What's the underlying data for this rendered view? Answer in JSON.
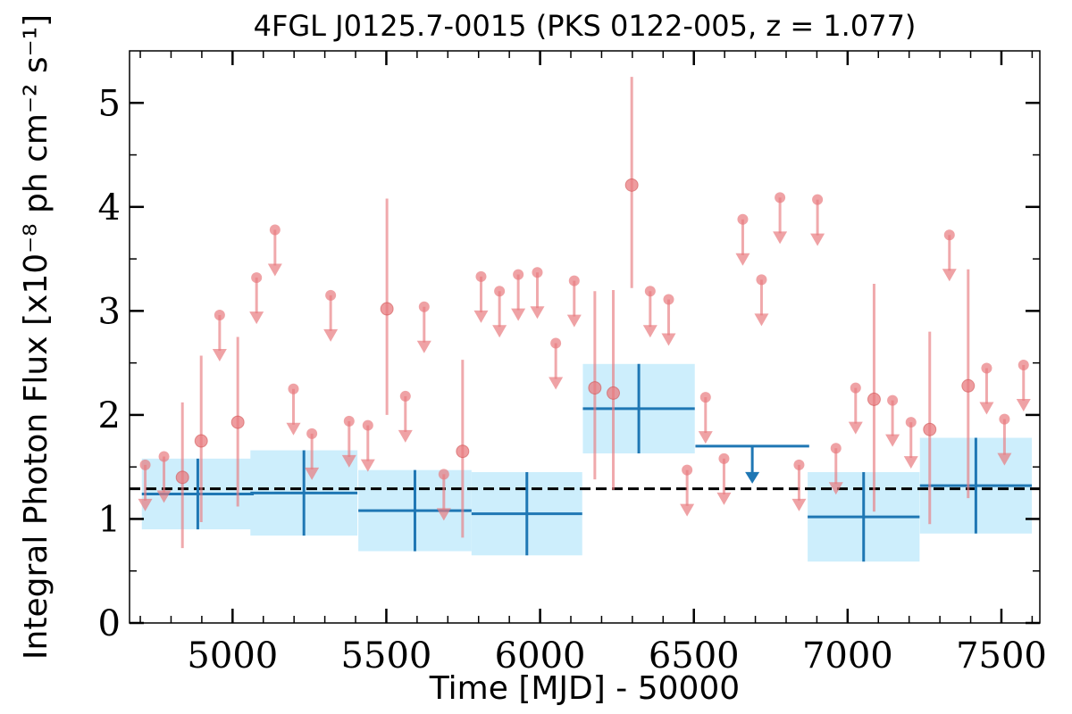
{
  "chart_data": {
    "type": "scatter",
    "title": "4FGL J0125.7-0015 (PKS 0122-005, z = 1.077)",
    "xlabel": "Time [MJD] - 50000",
    "ylabel": "Integral Photon Flux [x10⁻⁸ ph cm⁻² s⁻¹]",
    "xlim": [
      4665,
      7625
    ],
    "ylim": [
      0,
      5.5
    ],
    "x_ticks": [
      5000,
      5500,
      6000,
      6500,
      7000,
      7500
    ],
    "x_tick_labels": [
      "5000",
      "5500",
      "6000",
      "6500",
      "7000",
      "7500"
    ],
    "y_ticks": [
      0,
      1,
      2,
      3,
      4,
      5
    ],
    "y_tick_labels": [
      "0",
      "1",
      "2",
      "3",
      "4",
      "5"
    ],
    "grid": false,
    "mean_flux": 1.29,
    "colors": {
      "short_bins": "#e87b7f",
      "long_bins": "#1f77b4",
      "long_bins_band": "#cdeefc",
      "mean_line": "#000000"
    },
    "long_bins": [
      {
        "x": 4887,
        "xerr": 182,
        "y": 1.24,
        "yerr": 0.34
      },
      {
        "x": 5232,
        "xerr": 174,
        "y": 1.25,
        "yerr": 0.41
      },
      {
        "x": 5593,
        "xerr": 184,
        "y": 1.08,
        "yerr": 0.39
      },
      {
        "x": 5957,
        "xerr": 180,
        "y": 1.05,
        "yerr": 0.4
      },
      {
        "x": 6321,
        "xerr": 182,
        "y": 2.06,
        "yerr": 0.43
      },
      {
        "x": 7052,
        "xerr": 182,
        "y": 1.02,
        "yerr": 0.43
      },
      {
        "x": 7417,
        "xerr": 182,
        "y": 1.32,
        "yerr": 0.46
      }
    ],
    "long_bin_upper_limits": [
      {
        "x": 6690,
        "xerr": 185,
        "y": 1.7
      }
    ],
    "short_bins": [
      {
        "x": 4837,
        "y": 1.4,
        "y_low": 0.72,
        "y_high": 2.12
      },
      {
        "x": 4898,
        "y": 1.75,
        "y_low": 0.97,
        "y_high": 2.57
      },
      {
        "x": 5017,
        "y": 1.93,
        "y_low": 1.12,
        "y_high": 2.75
      },
      {
        "x": 5502,
        "y": 3.02,
        "y_low": 2.0,
        "y_high": 4.08
      },
      {
        "x": 5748,
        "y": 1.65,
        "y_low": 0.82,
        "y_high": 2.53
      },
      {
        "x": 6178,
        "y": 2.26,
        "y_low": 1.38,
        "y_high": 3.19
      },
      {
        "x": 6238,
        "y": 2.21,
        "y_low": 1.28,
        "y_high": 3.2
      },
      {
        "x": 6298,
        "y": 4.21,
        "y_low": 3.22,
        "y_high": 5.25
      },
      {
        "x": 7086,
        "y": 2.15,
        "y_low": 1.07,
        "y_high": 3.26
      },
      {
        "x": 7267,
        "y": 1.86,
        "y_low": 0.95,
        "y_high": 2.8
      },
      {
        "x": 7392,
        "y": 2.28,
        "y_low": 1.2,
        "y_high": 3.4
      }
    ],
    "short_bin_upper_limits": [
      {
        "x": 4716,
        "y": 1.52
      },
      {
        "x": 4777,
        "y": 1.6
      },
      {
        "x": 4958,
        "y": 2.96
      },
      {
        "x": 5078,
        "y": 3.32
      },
      {
        "x": 5138,
        "y": 3.78
      },
      {
        "x": 5198,
        "y": 2.25
      },
      {
        "x": 5258,
        "y": 1.82
      },
      {
        "x": 5319,
        "y": 3.15
      },
      {
        "x": 5379,
        "y": 1.94
      },
      {
        "x": 5440,
        "y": 1.9
      },
      {
        "x": 5562,
        "y": 2.18
      },
      {
        "x": 5623,
        "y": 3.04
      },
      {
        "x": 5687,
        "y": 1.43
      },
      {
        "x": 5808,
        "y": 3.33
      },
      {
        "x": 5868,
        "y": 3.19
      },
      {
        "x": 5929,
        "y": 3.35
      },
      {
        "x": 5991,
        "y": 3.37
      },
      {
        "x": 6051,
        "y": 2.69
      },
      {
        "x": 6111,
        "y": 3.29
      },
      {
        "x": 6358,
        "y": 3.19
      },
      {
        "x": 6418,
        "y": 3.11
      },
      {
        "x": 6478,
        "y": 1.47
      },
      {
        "x": 6538,
        "y": 2.17
      },
      {
        "x": 6598,
        "y": 1.58
      },
      {
        "x": 6659,
        "y": 3.88
      },
      {
        "x": 6720,
        "y": 3.3
      },
      {
        "x": 6780,
        "y": 4.09
      },
      {
        "x": 6842,
        "y": 1.52
      },
      {
        "x": 6902,
        "y": 4.07
      },
      {
        "x": 6962,
        "y": 1.68
      },
      {
        "x": 7026,
        "y": 2.26
      },
      {
        "x": 7146,
        "y": 2.14
      },
      {
        "x": 7206,
        "y": 1.93
      },
      {
        "x": 7331,
        "y": 3.73
      },
      {
        "x": 7452,
        "y": 2.45
      },
      {
        "x": 7510,
        "y": 1.96
      },
      {
        "x": 7572,
        "y": 2.48
      }
    ]
  }
}
